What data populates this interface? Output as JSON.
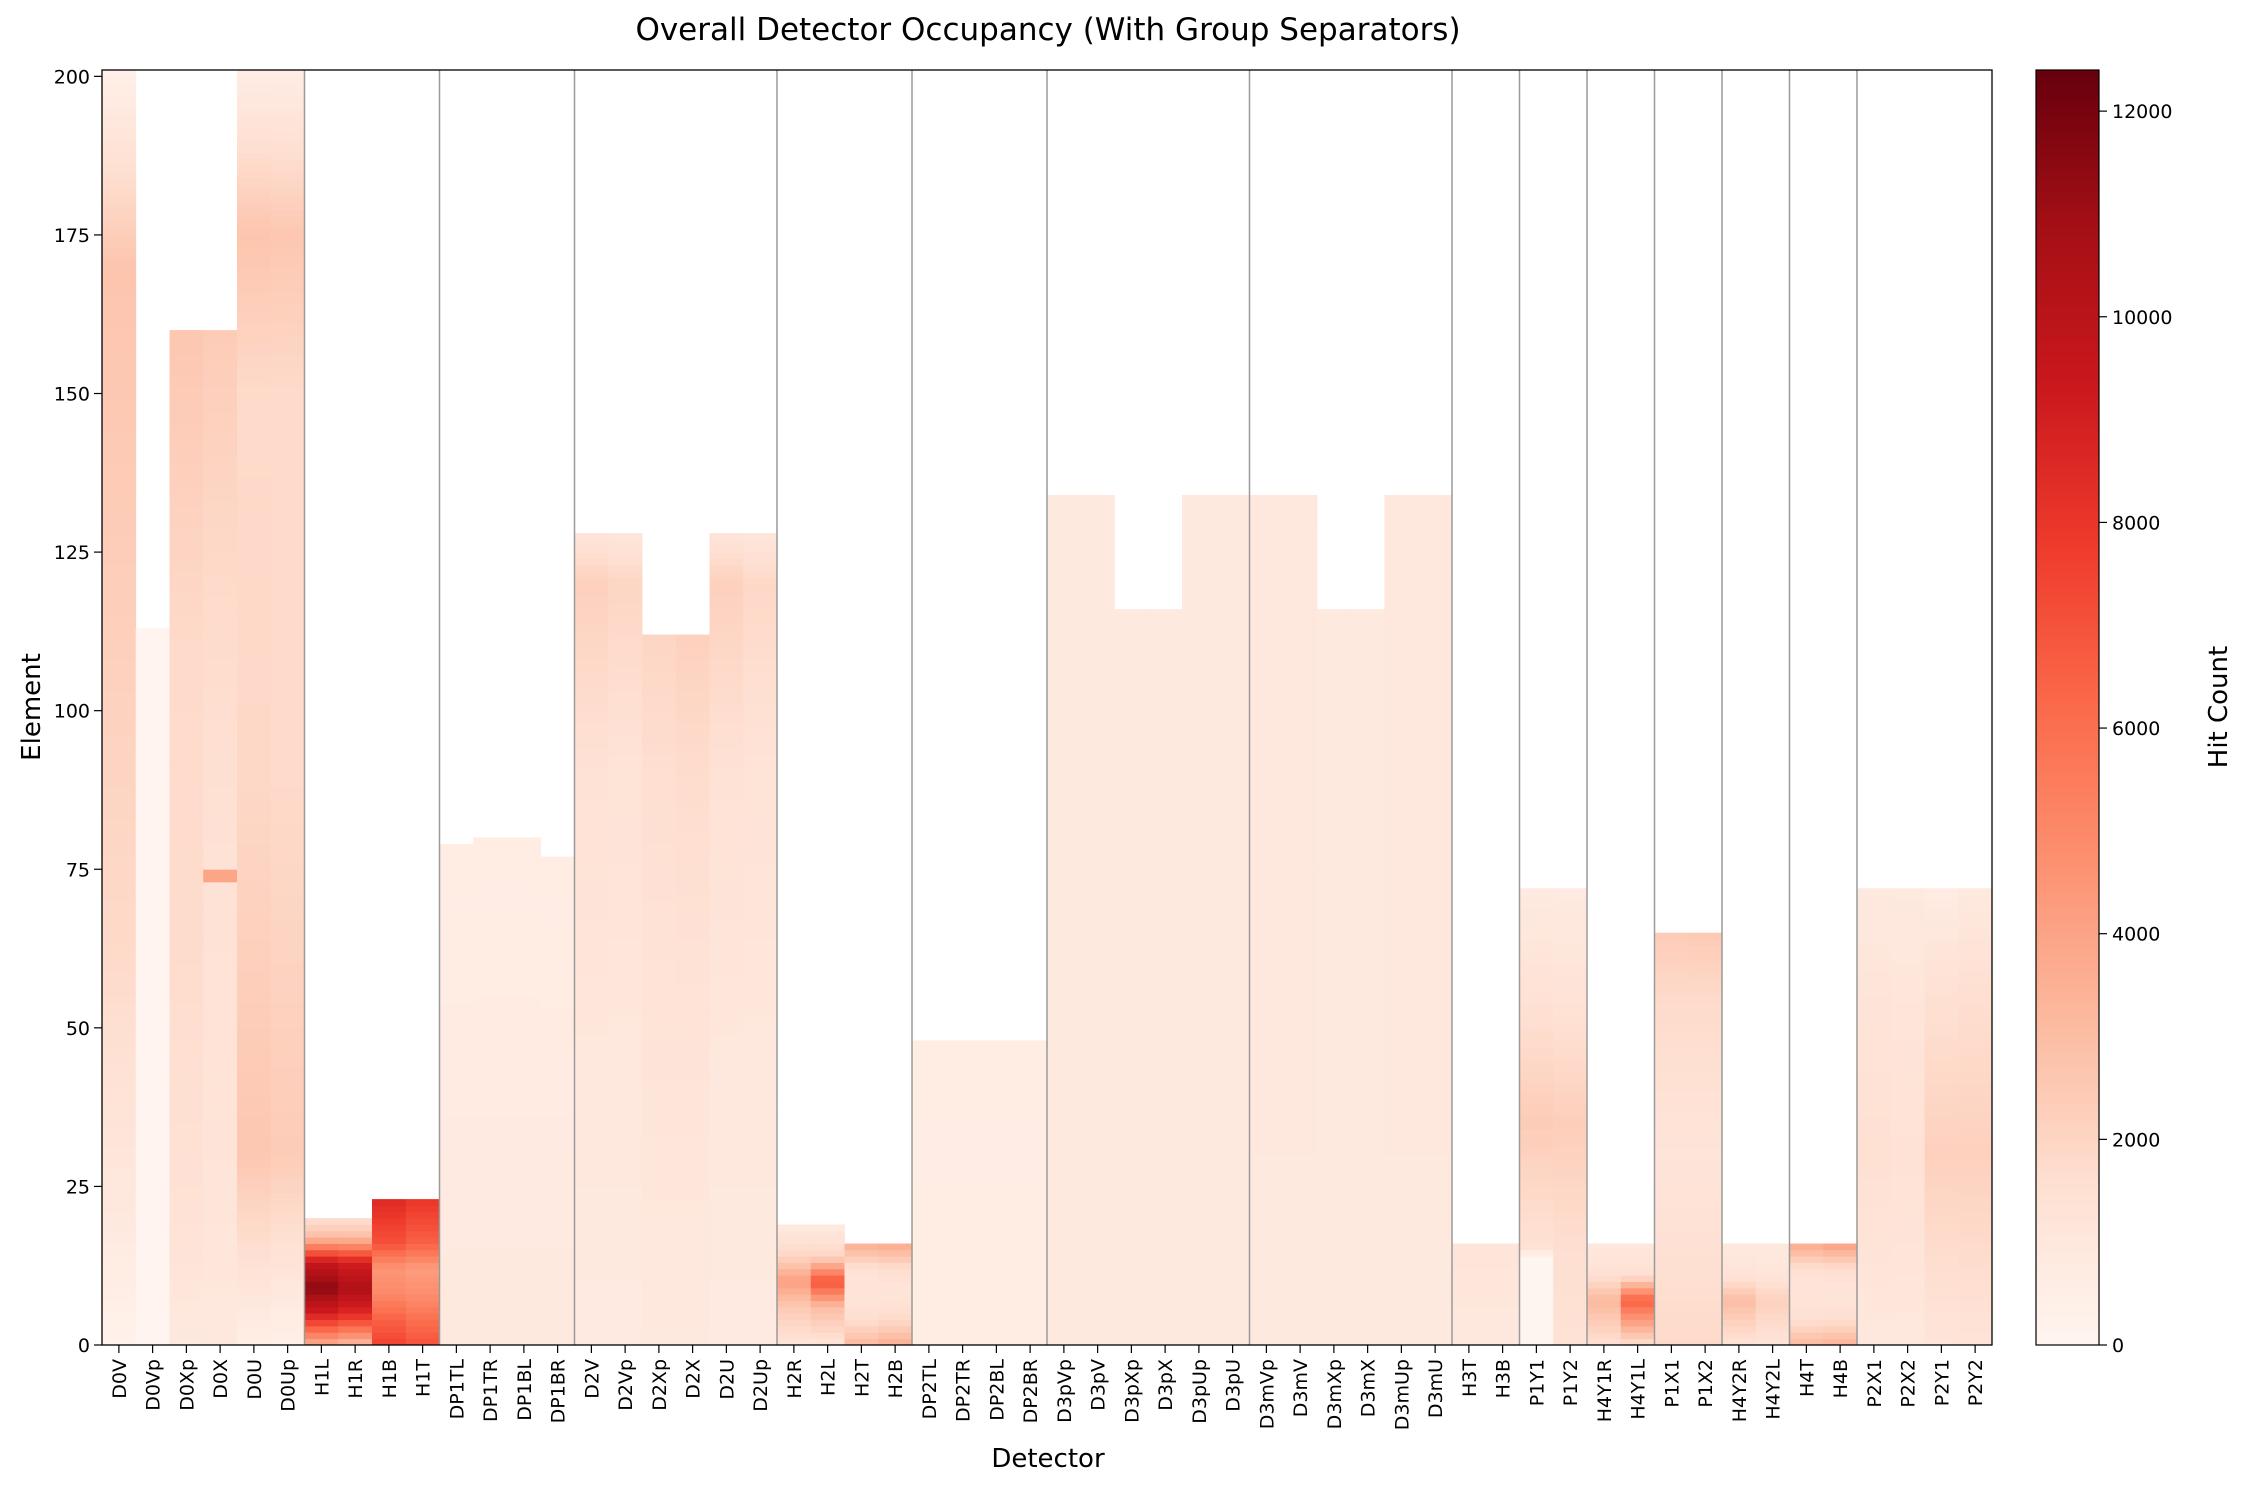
{
  "chart_data": {
    "type": "heatmap",
    "title": "Overall Detector Occupancy (With Group Separators)",
    "xlabel": "Detector",
    "ylabel": "Element",
    "ylim": [
      0,
      201
    ],
    "yticks": [
      0,
      25,
      50,
      75,
      100,
      125,
      150,
      175,
      200
    ],
    "grid": false,
    "colorbar": {
      "label": "Hit Count",
      "colormap": "Reds",
      "range": [
        0,
        12400
      ],
      "ticks": [
        0,
        2000,
        4000,
        6000,
        8000,
        10000,
        12000
      ]
    },
    "group_separators_after": [
      "D0Up",
      "H1T",
      "DP1BR",
      "D2Up",
      "H2B",
      "DP2BR",
      "D3pU",
      "D3mU",
      "H3B",
      "P1Y2",
      "H4Y1L",
      "P1X2",
      "H4Y2L",
      "H4B"
    ],
    "detectors": [
      {
        "name": "D0V",
        "elements": 201,
        "intensity": [
          [
            0,
            250
          ],
          [
            20,
            900
          ],
          [
            60,
            1800
          ],
          [
            120,
            2300
          ],
          [
            170,
            2700
          ],
          [
            201,
            400
          ]
        ]
      },
      {
        "name": "D0Vp",
        "elements": 113,
        "intensity": [
          [
            0,
            60
          ],
          [
            113,
            60
          ]
        ]
      },
      {
        "name": "D0Xp",
        "elements": 160,
        "intensity": [
          [
            0,
            900
          ],
          [
            20,
            1400
          ],
          [
            60,
            1700
          ],
          [
            110,
            1800
          ],
          [
            160,
            2600
          ]
        ]
      },
      {
        "name": "D0X",
        "elements": 160,
        "intensity": [
          [
            0,
            1000
          ],
          [
            40,
            1300
          ],
          [
            73,
            1400
          ],
          [
            74,
            6500
          ],
          [
            75,
            1400
          ],
          [
            120,
            1800
          ],
          [
            160,
            2400
          ]
        ]
      },
      {
        "name": "D0U",
        "elements": 201,
        "intensity": [
          [
            0,
            500
          ],
          [
            30,
            2600
          ],
          [
            90,
            1900
          ],
          [
            150,
            1800
          ],
          [
            175,
            2700
          ],
          [
            201,
            600
          ]
        ]
      },
      {
        "name": "D0Up",
        "elements": 201,
        "intensity": [
          [
            0,
            400
          ],
          [
            30,
            2400
          ],
          [
            90,
            1800
          ],
          [
            150,
            1800
          ],
          [
            175,
            2600
          ],
          [
            201,
            600
          ]
        ]
      },
      {
        "name": "H1L",
        "elements": 20,
        "intensity": [
          [
            0,
            3500
          ],
          [
            5,
            9000
          ],
          [
            9,
            11500
          ],
          [
            13,
            9500
          ],
          [
            17,
            3000
          ],
          [
            20,
            1500
          ]
        ]
      },
      {
        "name": "H1R",
        "elements": 20,
        "intensity": [
          [
            0,
            3000
          ],
          [
            5,
            8500
          ],
          [
            9,
            10500
          ],
          [
            13,
            9000
          ],
          [
            17,
            3000
          ],
          [
            20,
            1500
          ]
        ]
      },
      {
        "name": "H1B",
        "elements": 23,
        "intensity": [
          [
            0,
            7500
          ],
          [
            4,
            6500
          ],
          [
            8,
            5000
          ],
          [
            12,
            4500
          ],
          [
            16,
            7000
          ],
          [
            23,
            8500
          ]
        ]
      },
      {
        "name": "H1T",
        "elements": 23,
        "intensity": [
          [
            0,
            7000
          ],
          [
            4,
            6000
          ],
          [
            8,
            4800
          ],
          [
            12,
            4200
          ],
          [
            16,
            6500
          ],
          [
            23,
            8000
          ]
        ]
      },
      {
        "name": "DP1TL",
        "elements": 79,
        "intensity": [
          [
            0,
            900
          ],
          [
            30,
            800
          ],
          [
            79,
            600
          ]
        ]
      },
      {
        "name": "DP1TR",
        "elements": 80,
        "intensity": [
          [
            0,
            900
          ],
          [
            30,
            800
          ],
          [
            80,
            600
          ]
        ]
      },
      {
        "name": "DP1BL",
        "elements": 80,
        "intensity": [
          [
            0,
            900
          ],
          [
            30,
            800
          ],
          [
            80,
            600
          ]
        ]
      },
      {
        "name": "DP1BR",
        "elements": 77,
        "intensity": [
          [
            0,
            900
          ],
          [
            30,
            800
          ],
          [
            77,
            600
          ]
        ]
      },
      {
        "name": "D2V",
        "elements": 128,
        "intensity": [
          [
            0,
            800
          ],
          [
            40,
            1000
          ],
          [
            90,
            1400
          ],
          [
            120,
            2200
          ],
          [
            128,
            1200
          ]
        ]
      },
      {
        "name": "D2Vp",
        "elements": 128,
        "intensity": [
          [
            0,
            800
          ],
          [
            40,
            1000
          ],
          [
            90,
            1300
          ],
          [
            120,
            2000
          ],
          [
            128,
            1100
          ]
        ]
      },
      {
        "name": "D2Xp",
        "elements": 112,
        "intensity": [
          [
            0,
            900
          ],
          [
            40,
            1200
          ],
          [
            90,
            1600
          ],
          [
            112,
            2000
          ]
        ]
      },
      {
        "name": "D2X",
        "elements": 112,
        "intensity": [
          [
            0,
            900
          ],
          [
            40,
            1200
          ],
          [
            90,
            1700
          ],
          [
            112,
            2200
          ]
        ]
      },
      {
        "name": "D2U",
        "elements": 128,
        "intensity": [
          [
            0,
            800
          ],
          [
            40,
            1000
          ],
          [
            90,
            1400
          ],
          [
            120,
            2200
          ],
          [
            128,
            1200
          ]
        ]
      },
      {
        "name": "D2Up",
        "elements": 128,
        "intensity": [
          [
            0,
            800
          ],
          [
            40,
            1000
          ],
          [
            90,
            1300
          ],
          [
            120,
            1900
          ],
          [
            128,
            1100
          ]
        ]
      },
      {
        "name": "H2R",
        "elements": 19,
        "intensity": [
          [
            0,
            1200
          ],
          [
            6,
            2500
          ],
          [
            10,
            4200
          ],
          [
            14,
            2000
          ],
          [
            19,
            800
          ]
        ]
      },
      {
        "name": "H2L",
        "elements": 19,
        "intensity": [
          [
            0,
            1200
          ],
          [
            6,
            3000
          ],
          [
            10,
            7000
          ],
          [
            14,
            2000
          ],
          [
            19,
            800
          ]
        ]
      },
      {
        "name": "H2T",
        "elements": 16,
        "intensity": [
          [
            0,
            3200
          ],
          [
            4,
            1600
          ],
          [
            8,
            1200
          ],
          [
            12,
            1400
          ],
          [
            16,
            3600
          ]
        ]
      },
      {
        "name": "H2B",
        "elements": 16,
        "intensity": [
          [
            0,
            3600
          ],
          [
            4,
            1800
          ],
          [
            8,
            1200
          ],
          [
            12,
            1600
          ],
          [
            16,
            3800
          ]
        ]
      },
      {
        "name": "DP2TL",
        "elements": 48,
        "intensity": [
          [
            0,
            700
          ],
          [
            48,
            600
          ]
        ]
      },
      {
        "name": "DP2TR",
        "elements": 48,
        "intensity": [
          [
            0,
            700
          ],
          [
            48,
            600
          ]
        ]
      },
      {
        "name": "DP2BL",
        "elements": 48,
        "intensity": [
          [
            0,
            700
          ],
          [
            48,
            600
          ]
        ]
      },
      {
        "name": "DP2BR",
        "elements": 48,
        "intensity": [
          [
            0,
            700
          ],
          [
            48,
            600
          ]
        ]
      },
      {
        "name": "D3pVp",
        "elements": 134,
        "intensity": [
          [
            0,
            900
          ],
          [
            134,
            900
          ]
        ]
      },
      {
        "name": "D3pV",
        "elements": 134,
        "intensity": [
          [
            0,
            900
          ],
          [
            134,
            900
          ]
        ]
      },
      {
        "name": "D3pXp",
        "elements": 116,
        "intensity": [
          [
            0,
            900
          ],
          [
            116,
            900
          ]
        ]
      },
      {
        "name": "D3pX",
        "elements": 116,
        "intensity": [
          [
            0,
            900
          ],
          [
            116,
            900
          ]
        ]
      },
      {
        "name": "D3pUp",
        "elements": 134,
        "intensity": [
          [
            0,
            900
          ],
          [
            134,
            900
          ]
        ]
      },
      {
        "name": "D3pU",
        "elements": 134,
        "intensity": [
          [
            0,
            900
          ],
          [
            134,
            900
          ]
        ]
      },
      {
        "name": "D3mVp",
        "elements": 134,
        "intensity": [
          [
            0,
            900
          ],
          [
            134,
            1000
          ]
        ]
      },
      {
        "name": "D3mV",
        "elements": 134,
        "intensity": [
          [
            0,
            900
          ],
          [
            134,
            1000
          ]
        ]
      },
      {
        "name": "D3mXp",
        "elements": 116,
        "intensity": [
          [
            0,
            900
          ],
          [
            116,
            900
          ]
        ]
      },
      {
        "name": "D3mX",
        "elements": 116,
        "intensity": [
          [
            0,
            900
          ],
          [
            116,
            900
          ]
        ]
      },
      {
        "name": "D3mUp",
        "elements": 134,
        "intensity": [
          [
            0,
            900
          ],
          [
            134,
            1000
          ]
        ]
      },
      {
        "name": "D3mU",
        "elements": 134,
        "intensity": [
          [
            0,
            900
          ],
          [
            134,
            1000
          ]
        ]
      },
      {
        "name": "H3T",
        "elements": 16,
        "intensity": [
          [
            0,
            1000
          ],
          [
            16,
            1200
          ]
        ]
      },
      {
        "name": "H3B",
        "elements": 16,
        "intensity": [
          [
            0,
            1000
          ],
          [
            16,
            1200
          ]
        ]
      },
      {
        "name": "P1Y1",
        "elements": 72,
        "intensity": [
          [
            0,
            0
          ],
          [
            14,
            0
          ],
          [
            15,
            1400
          ],
          [
            35,
            2400
          ],
          [
            55,
            1400
          ],
          [
            72,
            800
          ]
        ]
      },
      {
        "name": "P1Y2",
        "elements": 72,
        "intensity": [
          [
            0,
            1400
          ],
          [
            15,
            1600
          ],
          [
            35,
            2300
          ],
          [
            55,
            1300
          ],
          [
            72,
            800
          ]
        ]
      },
      {
        "name": "H4Y1R",
        "elements": 16,
        "intensity": [
          [
            0,
            1500
          ],
          [
            7,
            3200
          ],
          [
            11,
            1500
          ],
          [
            16,
            900
          ]
        ]
      },
      {
        "name": "H4Y1L",
        "elements": 16,
        "intensity": [
          [
            0,
            1500
          ],
          [
            7,
            6500
          ],
          [
            11,
            1500
          ],
          [
            16,
            900
          ]
        ]
      },
      {
        "name": "P1X1",
        "elements": 65,
        "intensity": [
          [
            0,
            1800
          ],
          [
            30,
            1200
          ],
          [
            55,
            1800
          ],
          [
            65,
            2400
          ]
        ]
      },
      {
        "name": "P1X2",
        "elements": 65,
        "intensity": [
          [
            0,
            1800
          ],
          [
            30,
            1200
          ],
          [
            55,
            1800
          ],
          [
            65,
            2500
          ]
        ]
      },
      {
        "name": "H4Y2R",
        "elements": 16,
        "intensity": [
          [
            0,
            1300
          ],
          [
            7,
            3000
          ],
          [
            11,
            1300
          ],
          [
            16,
            900
          ]
        ]
      },
      {
        "name": "H4Y2L",
        "elements": 16,
        "intensity": [
          [
            0,
            1300
          ],
          [
            7,
            2200
          ],
          [
            11,
            1200
          ],
          [
            16,
            900
          ]
        ]
      },
      {
        "name": "H4T",
        "elements": 16,
        "intensity": [
          [
            0,
            3200
          ],
          [
            4,
            1500
          ],
          [
            8,
            1200
          ],
          [
            12,
            1500
          ],
          [
            16,
            3800
          ]
        ]
      },
      {
        "name": "H4B",
        "elements": 16,
        "intensity": [
          [
            0,
            3400
          ],
          [
            4,
            1600
          ],
          [
            8,
            1200
          ],
          [
            12,
            1600
          ],
          [
            16,
            4200
          ]
        ]
      },
      {
        "name": "P2X1",
        "elements": 72,
        "intensity": [
          [
            0,
            1000
          ],
          [
            30,
            1500
          ],
          [
            50,
            1300
          ],
          [
            72,
            900
          ]
        ]
      },
      {
        "name": "P2X2",
        "elements": 72,
        "intensity": [
          [
            0,
            1000
          ],
          [
            30,
            1400
          ],
          [
            50,
            1200
          ],
          [
            72,
            900
          ]
        ]
      },
      {
        "name": "P2Y1",
        "elements": 72,
        "intensity": [
          [
            0,
            1200
          ],
          [
            30,
            2200
          ],
          [
            55,
            1500
          ],
          [
            72,
            700
          ]
        ]
      },
      {
        "name": "P2Y2",
        "elements": 72,
        "intensity": [
          [
            0,
            1300
          ],
          [
            30,
            2200
          ],
          [
            55,
            1600
          ],
          [
            72,
            900
          ]
        ]
      }
    ]
  }
}
